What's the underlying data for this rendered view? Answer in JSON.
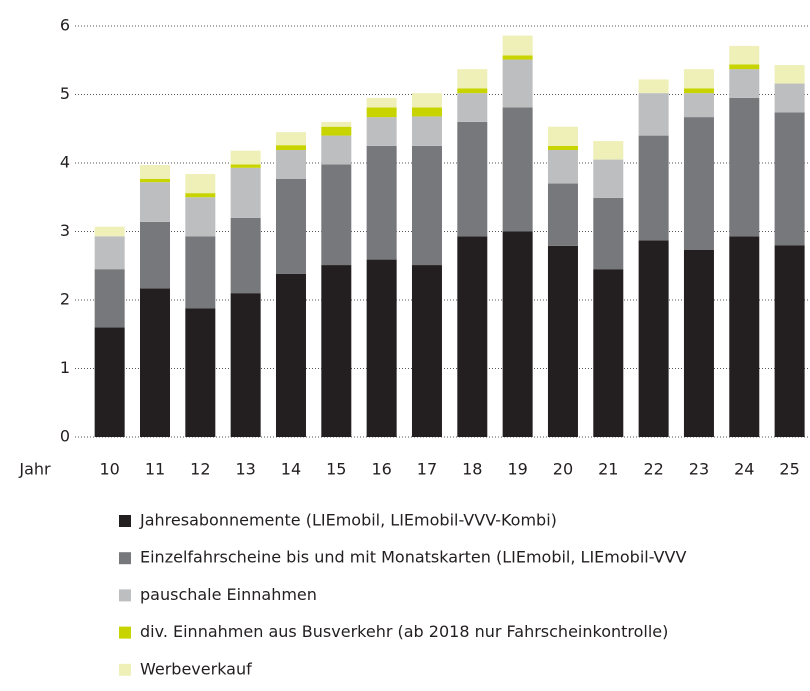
{
  "chart_data": {
    "type": "stacked_bar",
    "x_label": "Jahr",
    "categories": [
      "10",
      "11",
      "12",
      "13",
      "14",
      "15",
      "16",
      "17",
      "18",
      "19",
      "20",
      "21",
      "22",
      "23",
      "24",
      "25"
    ],
    "series": [
      {
        "name": "Jahresabonnemente (LIEmobil, LIEmobil-VVV-Kombi)",
        "color": "#231f20",
        "values": [
          1.6,
          2.17,
          1.88,
          2.1,
          2.38,
          2.51,
          2.59,
          2.51,
          2.93,
          3.0,
          2.79,
          2.45,
          2.87,
          2.73,
          2.93,
          2.8
        ]
      },
      {
        "name": "Einzelfahrscheine bis und mit Monatskarten (LIEmobil, LIEmobil-VVV",
        "color": "#77787b",
        "values": [
          0.85,
          0.97,
          1.05,
          1.1,
          1.39,
          1.47,
          1.66,
          1.74,
          1.67,
          1.81,
          0.91,
          1.04,
          1.53,
          1.94,
          2.02,
          1.94
        ]
      },
      {
        "name": "pauschale Einnahmen",
        "color": "#bcbec0",
        "values": [
          0.48,
          0.58,
          0.57,
          0.73,
          0.42,
          0.42,
          0.42,
          0.43,
          0.42,
          0.7,
          0.49,
          0.56,
          0.62,
          0.35,
          0.42,
          0.42
        ]
      },
      {
        "name": "div. Einnahmen aus Busverkehr (ab 2018 nur Fahrscheinkontrolle)",
        "color": "#c8d400",
        "values": [
          0,
          0.05,
          0.06,
          0.05,
          0.07,
          0.13,
          0.14,
          0.13,
          0.07,
          0.06,
          0.06,
          0,
          0,
          0.07,
          0.07,
          0
        ]
      },
      {
        "name": "Werbeverkauf",
        "color": "#eef0b8",
        "values": [
          0.14,
          0.2,
          0.28,
          0.2,
          0.19,
          0.07,
          0.14,
          0.21,
          0.28,
          0.29,
          0.28,
          0.27,
          0.2,
          0.28,
          0.27,
          0.27
        ]
      }
    ],
    "ylim": [
      0,
      6
    ],
    "yticks": [
      0,
      1,
      2,
      3,
      4,
      5,
      6
    ],
    "grid": true
  }
}
